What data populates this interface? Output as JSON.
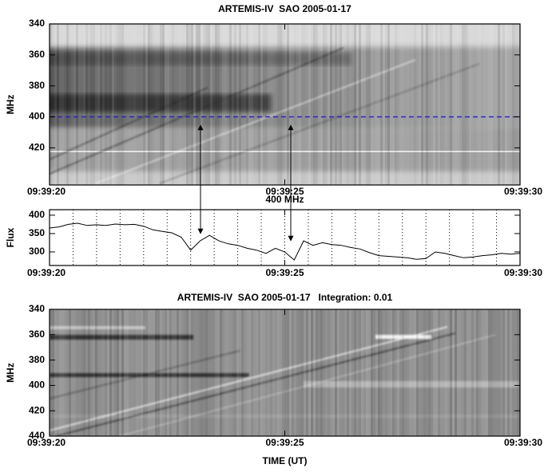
{
  "chart_data": [
    {
      "type": "spectrogram",
      "title": "ARTEMIS-IV  SAO 2005-01-17",
      "y_label": "MHz",
      "xlim": [
        0,
        10
      ],
      "xticks": [
        {
          "value": 0,
          "label": "09:39:20"
        },
        {
          "value": 5,
          "label": "09:39:25"
        },
        {
          "value": 10,
          "label": "09:39:30"
        }
      ],
      "ylim": [
        444,
        340
      ],
      "yticks": [
        340,
        360,
        380,
        400,
        420
      ],
      "hline": {
        "value": 400,
        "color": "#2222cc"
      }
    },
    {
      "type": "line",
      "title": "400 MHz",
      "y_label": "Flux",
      "color": "#000000",
      "xlim": [
        0,
        10
      ],
      "xticks": [
        {
          "value": 0,
          "label": "09:39:20"
        },
        {
          "value": 5,
          "label": "09:39:25"
        },
        {
          "value": 10,
          "label": "09:39:30"
        }
      ],
      "ylim": [
        263,
        415
      ],
      "yticks": [
        300,
        350,
        400
      ],
      "xgrid": [
        0.5,
        1,
        1.5,
        2,
        2.5,
        3,
        3.5,
        4,
        4.5,
        5,
        5.5,
        6,
        6.5,
        7,
        7.5,
        8,
        8.5,
        9,
        9.5
      ],
      "x": [
        0,
        0.2,
        0.4,
        0.6,
        0.8,
        1,
        1.2,
        1.4,
        1.6,
        1.8,
        2,
        2.2,
        2.4,
        2.6,
        2.8,
        3,
        3.2,
        3.4,
        3.6,
        3.8,
        4,
        4.2,
        4.4,
        4.6,
        4.8,
        5,
        5.2,
        5.4,
        5.6,
        5.8,
        6,
        6.2,
        6.4,
        6.6,
        6.8,
        7,
        7.2,
        7.4,
        7.6,
        7.8,
        8,
        8.2,
        8.4,
        8.6,
        8.8,
        9,
        9.2,
        9.4,
        9.6,
        9.8,
        10
      ],
      "values": [
        365,
        368,
        375,
        378,
        372,
        374,
        372,
        376,
        374,
        375,
        370,
        360,
        356,
        352,
        340,
        305,
        330,
        345,
        330,
        322,
        318,
        310,
        305,
        296,
        310,
        300,
        278,
        330,
        318,
        325,
        320,
        318,
        312,
        308,
        298,
        290,
        288,
        286,
        284,
        280,
        282,
        300,
        296,
        290,
        284,
        286,
        290,
        292,
        296,
        294,
        296
      ]
    },
    {
      "type": "spectrogram",
      "title": "ARTEMIS-IV  SAO 2005-01-17   Integration: 0.01",
      "y_label": "MHz",
      "x_label": "TIME (UT)",
      "xlim": [
        0,
        10
      ],
      "xticks": [
        {
          "value": 0,
          "label": "09:39:20"
        },
        {
          "value": 5,
          "label": "09:39:25"
        },
        {
          "value": 10,
          "label": "09:39:30"
        }
      ],
      "ylim": [
        440,
        340
      ],
      "yticks": [
        340,
        360,
        380,
        400,
        420,
        440
      ]
    }
  ]
}
